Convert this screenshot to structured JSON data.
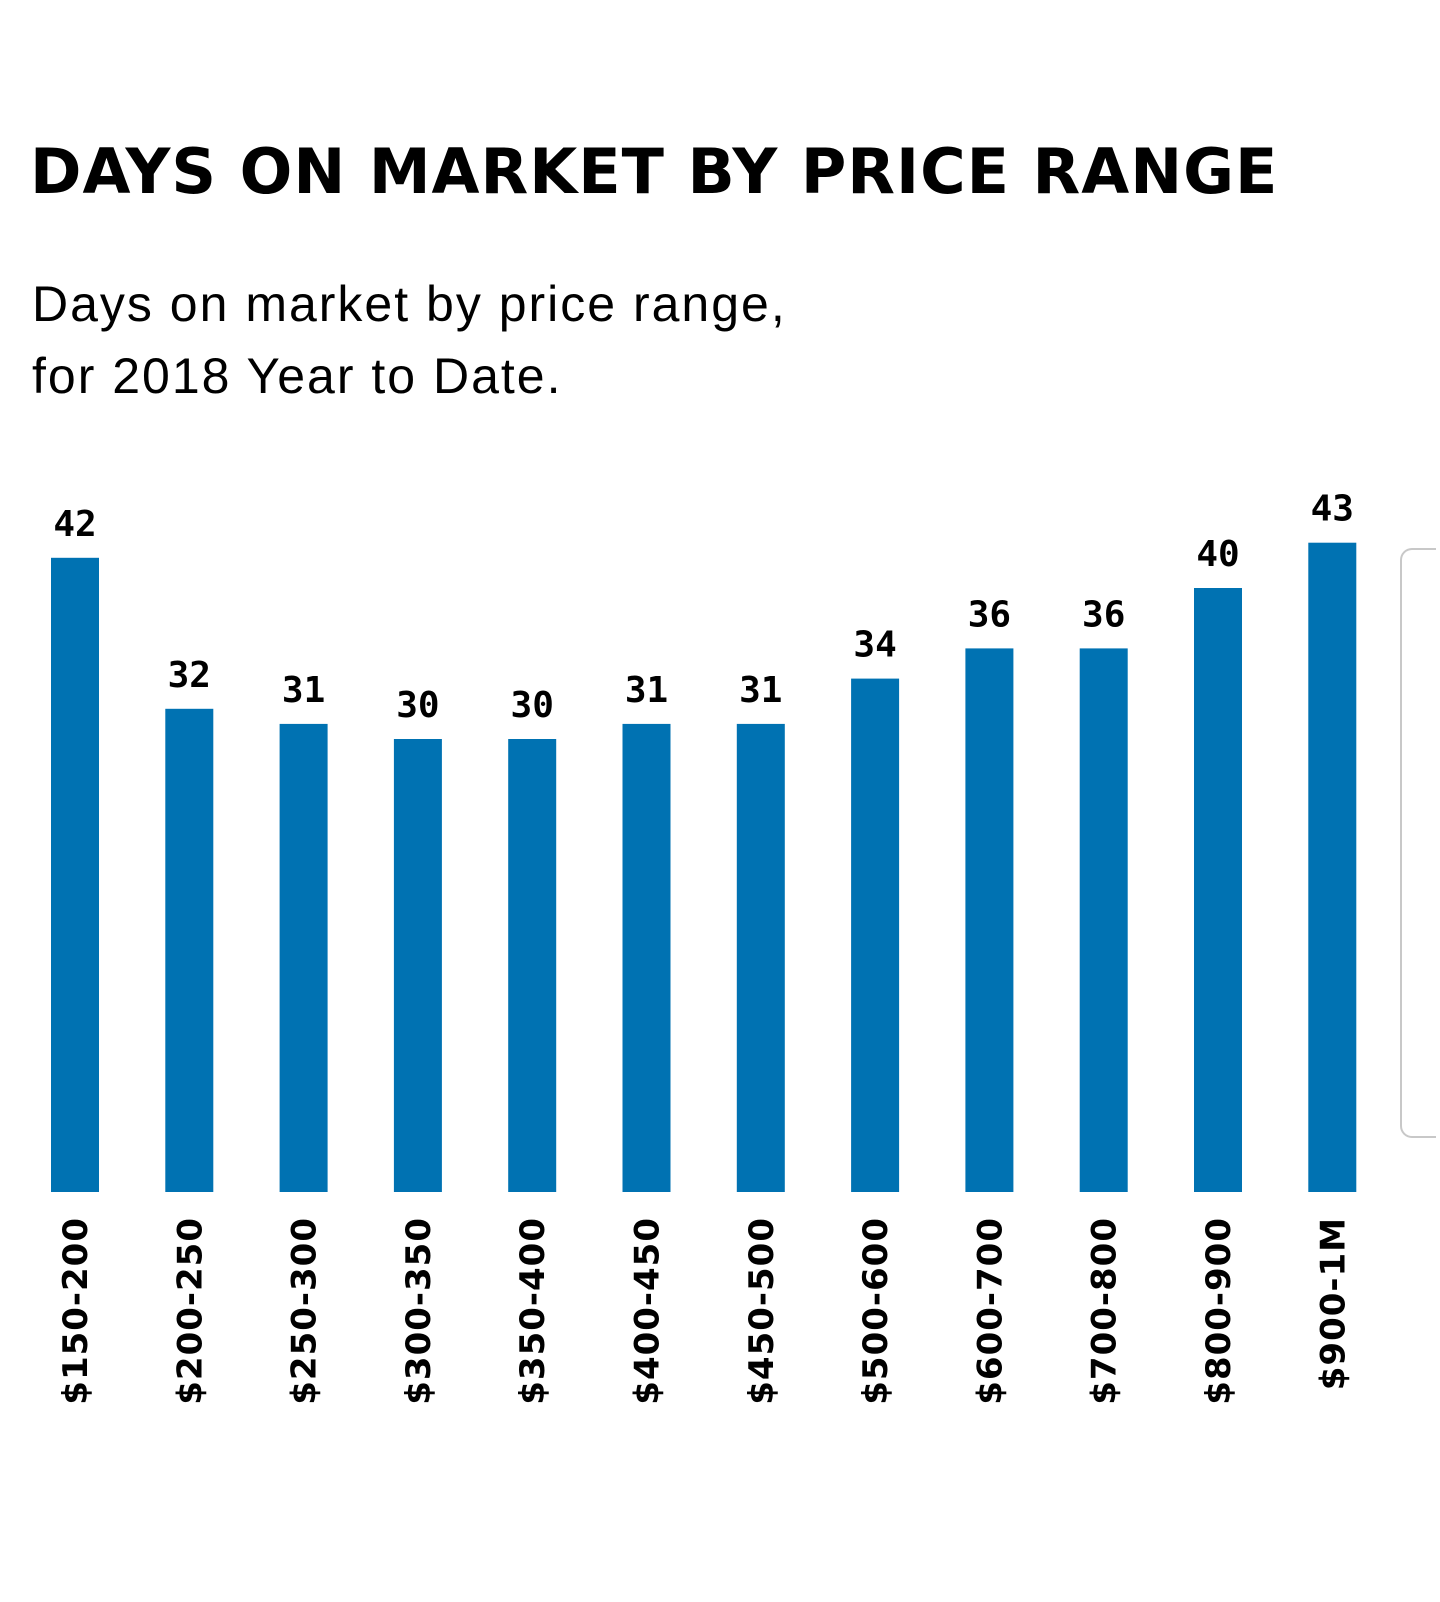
{
  "header": {
    "title": "DAYS ON MARKET BY PRICE RANGE",
    "subtitle_line1": "Days on market by price range,",
    "subtitle_line2": "for 2018 Year to Date."
  },
  "colors": {
    "bar": "#0072B2",
    "text": "#000000",
    "background": "#FFFFFF"
  },
  "chart_data": {
    "type": "bar",
    "title": "DAYS ON MARKET BY PRICE RANGE",
    "subtitle": "Days on market by price range, for 2018 Year to Date.",
    "xlabel": "",
    "ylabel": "",
    "categories": [
      "$150-200",
      "$200-250",
      "$250-300",
      "$300-350",
      "$350-400",
      "$400-450",
      "$450-500",
      "$500-600",
      "$600-700",
      "$700-800",
      "$800-900",
      "$900-1M"
    ],
    "values": [
      42,
      32,
      31,
      30,
      30,
      31,
      31,
      34,
      36,
      36,
      40,
      43
    ],
    "ylim": [
      0,
      45
    ],
    "grid": false,
    "legend": "none",
    "data_labels": true,
    "category_label_orientation": "vertical"
  }
}
